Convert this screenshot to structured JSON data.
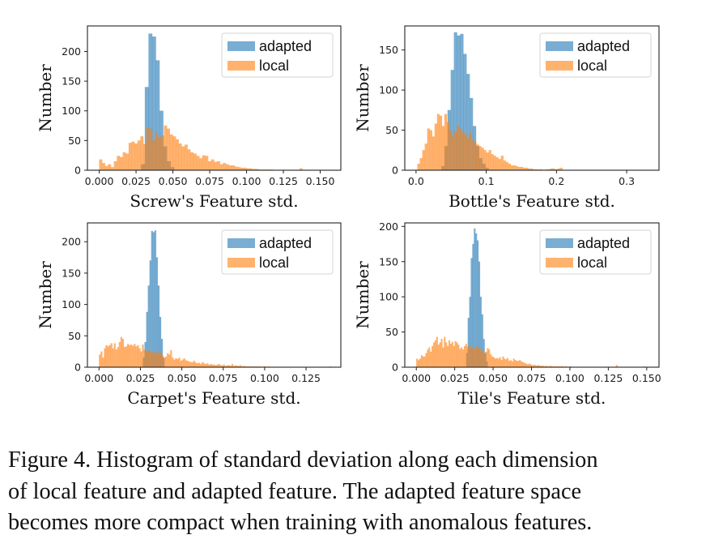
{
  "figure": {
    "caption_lines": [
      "Figure 4.  Histogram of standard deviation along each dimension",
      "of local feature and adapted feature.  The adapted feature space",
      "becomes more compact when training with anomalous features."
    ]
  },
  "colors": {
    "adapted": "#1f77b4",
    "local": "#ff7f0e",
    "alpha": 0.6
  },
  "chart_data": [
    {
      "type": "bar",
      "histogram": true,
      "title": "",
      "xlabel": "Screw's Feature std.",
      "ylabel": "Number",
      "xlim": [
        -0.008,
        0.164
      ],
      "ylim": [
        0,
        243
      ],
      "xticks": [
        0.0,
        0.025,
        0.05,
        0.075,
        0.1,
        0.125,
        0.15
      ],
      "xtick_labels": [
        "0.000",
        "0.025",
        "0.050",
        "0.075",
        "0.100",
        "0.125",
        "0.150"
      ],
      "yticks": [
        0,
        50,
        100,
        150,
        200
      ],
      "ytick_labels": [
        "0",
        "50",
        "100",
        "150",
        "200"
      ],
      "legend": {
        "position": "top-right",
        "entries": [
          "adapted",
          "local"
        ]
      },
      "series": [
        {
          "name": "adapted",
          "bin_start": 0.0285,
          "bin_width": 0.0025,
          "values": [
            10,
            140,
            230,
            225,
            185,
            100,
            40,
            15,
            5
          ]
        },
        {
          "name": "local",
          "bin_start": 0.0,
          "bin_width": 0.002,
          "values": [
            18,
            12,
            7,
            10,
            5,
            15,
            24,
            22,
            30,
            28,
            46,
            48,
            45,
            50,
            57,
            44,
            72,
            70,
            50,
            62,
            55,
            58,
            75,
            70,
            60,
            57,
            52,
            45,
            40,
            43,
            35,
            30,
            28,
            24,
            20,
            25,
            24,
            15,
            18,
            14,
            15,
            10,
            12,
            10,
            8,
            8,
            6,
            5,
            4,
            4,
            3,
            3,
            2,
            2,
            1,
            1,
            1,
            1,
            1,
            0,
            0,
            0,
            0,
            0,
            0,
            0,
            0,
            0,
            3
          ]
        }
      ]
    },
    {
      "type": "bar",
      "histogram": true,
      "title": "",
      "xlabel": "Bottle's Feature std.",
      "ylabel": "Number",
      "xlim": [
        -0.016,
        0.346
      ],
      "ylim": [
        0,
        180
      ],
      "xticks": [
        0.0,
        0.1,
        0.2,
        0.3
      ],
      "xtick_labels": [
        "0.0",
        "0.1",
        "0.2",
        "0.3"
      ],
      "yticks": [
        0,
        50,
        100,
        150
      ],
      "ytick_labels": [
        "0",
        "50",
        "100",
        "150"
      ],
      "legend": {
        "position": "top-right",
        "entries": [
          "adapted",
          "local"
        ]
      },
      "series": [
        {
          "name": "adapted",
          "bin_start": 0.036,
          "bin_width": 0.0045,
          "values": [
            5,
            30,
            75,
            125,
            172,
            168,
            170,
            145,
            120,
            90,
            55,
            30,
            15,
            8,
            3
          ]
        },
        {
          "name": "local",
          "bin_start": 0.002,
          "bin_width": 0.0035,
          "values": [
            8,
            15,
            25,
            33,
            52,
            50,
            42,
            58,
            70,
            68,
            55,
            70,
            60,
            50,
            42,
            48,
            55,
            52,
            48,
            45,
            40,
            47,
            38,
            35,
            32,
            30,
            28,
            25,
            22,
            25,
            20,
            18,
            16,
            14,
            18,
            12,
            10,
            8,
            6,
            6,
            5,
            4,
            4,
            3,
            3,
            2,
            2,
            1,
            1,
            1,
            1,
            0,
            1,
            1,
            2,
            2,
            1,
            2,
            3
          ]
        }
      ]
    },
    {
      "type": "bar",
      "histogram": true,
      "title": "",
      "xlabel": "Carpet's Feature std.",
      "ylabel": "Number",
      "xlim": [
        -0.007,
        0.146
      ],
      "ylim": [
        0,
        230
      ],
      "xticks": [
        0.0,
        0.025,
        0.05,
        0.075,
        0.1,
        0.125
      ],
      "xtick_labels": [
        "0.000",
        "0.025",
        "0.050",
        "0.075",
        "0.100",
        "0.125"
      ],
      "yticks": [
        0,
        50,
        100,
        150,
        200
      ],
      "ytick_labels": [
        "0",
        "50",
        "100",
        "150",
        "200"
      ],
      "legend": {
        "position": "top-right",
        "entries": [
          "adapted",
          "local"
        ]
      },
      "series": [
        {
          "name": "adapted",
          "bin_start": 0.0265,
          "bin_width": 0.001,
          "values": [
            15,
            40,
            88,
            130,
            170,
            217,
            215,
            218,
            175,
            130,
            80,
            45,
            15
          ]
        },
        {
          "name": "local",
          "bin_start": 0.0,
          "bin_width": 0.001,
          "values": [
            20,
            25,
            15,
            30,
            35,
            33,
            35,
            38,
            30,
            38,
            28,
            32,
            40,
            48,
            45,
            32,
            33,
            37,
            35,
            36,
            34,
            37,
            33,
            35,
            30,
            25,
            36,
            28,
            26,
            25,
            27,
            24,
            25,
            22,
            23,
            26,
            20,
            24,
            18,
            15,
            17,
            22,
            20,
            27,
            15,
            12,
            14,
            13,
            15,
            10,
            12,
            14,
            11,
            10,
            9,
            8,
            8,
            10,
            7,
            6,
            7,
            5,
            8,
            6,
            5,
            6,
            4,
            5,
            4,
            4,
            3,
            4,
            5,
            3,
            3,
            4,
            2,
            3,
            3,
            2,
            5,
            2,
            3,
            2,
            2,
            3,
            1,
            2,
            1,
            1,
            1,
            1,
            1,
            1,
            1,
            1,
            1,
            1,
            0,
            1,
            1,
            0,
            1,
            0,
            0,
            0,
            0,
            0,
            0,
            0,
            0,
            0,
            0,
            0,
            0,
            0,
            0,
            0,
            0,
            0,
            0,
            0,
            0,
            0,
            0,
            0,
            0,
            0,
            0,
            0,
            0,
            0,
            0,
            0,
            0,
            0,
            0,
            0,
            0,
            1
          ]
        }
      ]
    },
    {
      "type": "bar",
      "histogram": true,
      "title": "",
      "xlabel": "Tile's Feature std.",
      "ylabel": "Number",
      "xlim": [
        -0.0075,
        0.158
      ],
      "ylim": [
        0,
        205
      ],
      "xticks": [
        0.0,
        0.025,
        0.05,
        0.075,
        0.1,
        0.125,
        0.15
      ],
      "xtick_labels": [
        "0.000",
        "0.025",
        "0.050",
        "0.075",
        "0.100",
        "0.125",
        "0.150"
      ],
      "yticks": [
        0,
        50,
        100,
        150,
        200
      ],
      "ytick_labels": [
        "0",
        "50",
        "100",
        "150",
        "200"
      ],
      "legend": {
        "position": "top-right",
        "entries": [
          "adapted",
          "local"
        ]
      },
      "series": [
        {
          "name": "adapted",
          "bin_start": 0.0325,
          "bin_width": 0.001,
          "values": [
            20,
            70,
            100,
            155,
            175,
            197,
            190,
            180,
            150,
            100,
            75,
            40,
            20,
            8
          ]
        },
        {
          "name": "local",
          "bin_start": 0.0,
          "bin_width": 0.001,
          "values": [
            12,
            10,
            12,
            17,
            15,
            15,
            20,
            25,
            28,
            22,
            30,
            35,
            38,
            43,
            32,
            35,
            40,
            28,
            43,
            35,
            30,
            38,
            33,
            36,
            30,
            37,
            35,
            32,
            26,
            28,
            25,
            30,
            33,
            29,
            27,
            30,
            28,
            25,
            27,
            30,
            28,
            26,
            23,
            25,
            20,
            22,
            27,
            25,
            18,
            15,
            14,
            12,
            13,
            12,
            14,
            10,
            15,
            12,
            11,
            13,
            9,
            10,
            8,
            12,
            10,
            9,
            9,
            10,
            8,
            7,
            6,
            5,
            4,
            5,
            4,
            3,
            3,
            3,
            2,
            3,
            2,
            2,
            2,
            1,
            2,
            1,
            1,
            2,
            1,
            1,
            1,
            1,
            1,
            1,
            1,
            1,
            0,
            1,
            0,
            0,
            1,
            0,
            0,
            0,
            0,
            0,
            0,
            0,
            0,
            0,
            0,
            0,
            0,
            0,
            0,
            0,
            0,
            0,
            0,
            0,
            0,
            0,
            0,
            0,
            0,
            0,
            0,
            0,
            0,
            0,
            3,
            0,
            0,
            0,
            0,
            0,
            0,
            0,
            0,
            0,
            0,
            0,
            0,
            0,
            0,
            0,
            0,
            0,
            1
          ]
        }
      ]
    }
  ]
}
